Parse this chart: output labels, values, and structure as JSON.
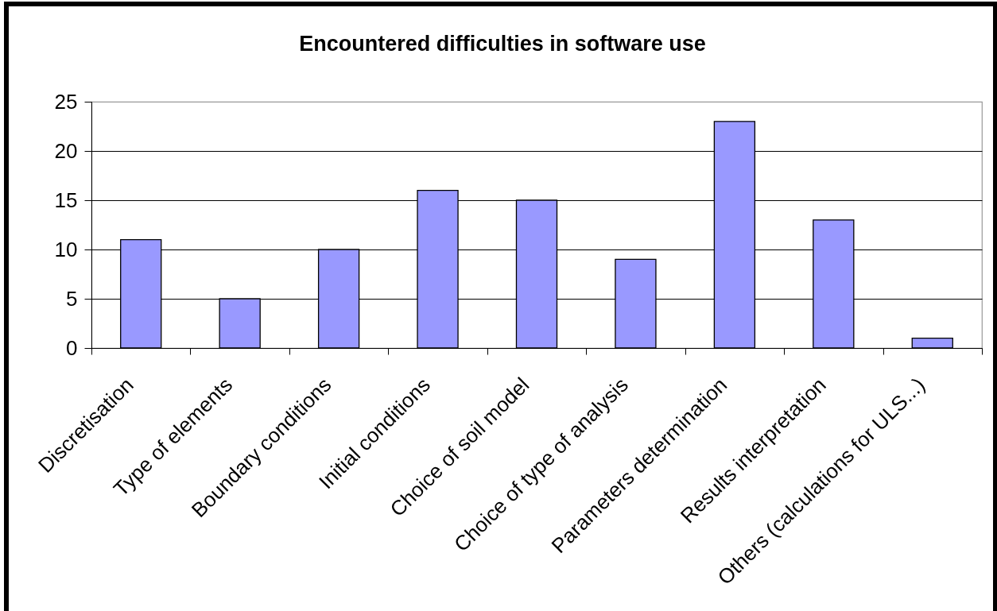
{
  "chart_data": {
    "type": "bar",
    "title": "Encountered difficulties in software use",
    "categories": [
      "Discretisation",
      "Type of elements",
      "Boundary conditions",
      "Initial conditions",
      "Choice of soil model",
      "Choice of type of analysis",
      "Parameters determination",
      "Results interpretation",
      "Others (calculations for ULS...)"
    ],
    "values": [
      11,
      5,
      10,
      16,
      15,
      9,
      23,
      13,
      1
    ],
    "color": "#9999ff",
    "ylim": [
      0,
      25
    ],
    "yticks": [
      0,
      5,
      10,
      15,
      20,
      25
    ],
    "grid": "y"
  }
}
